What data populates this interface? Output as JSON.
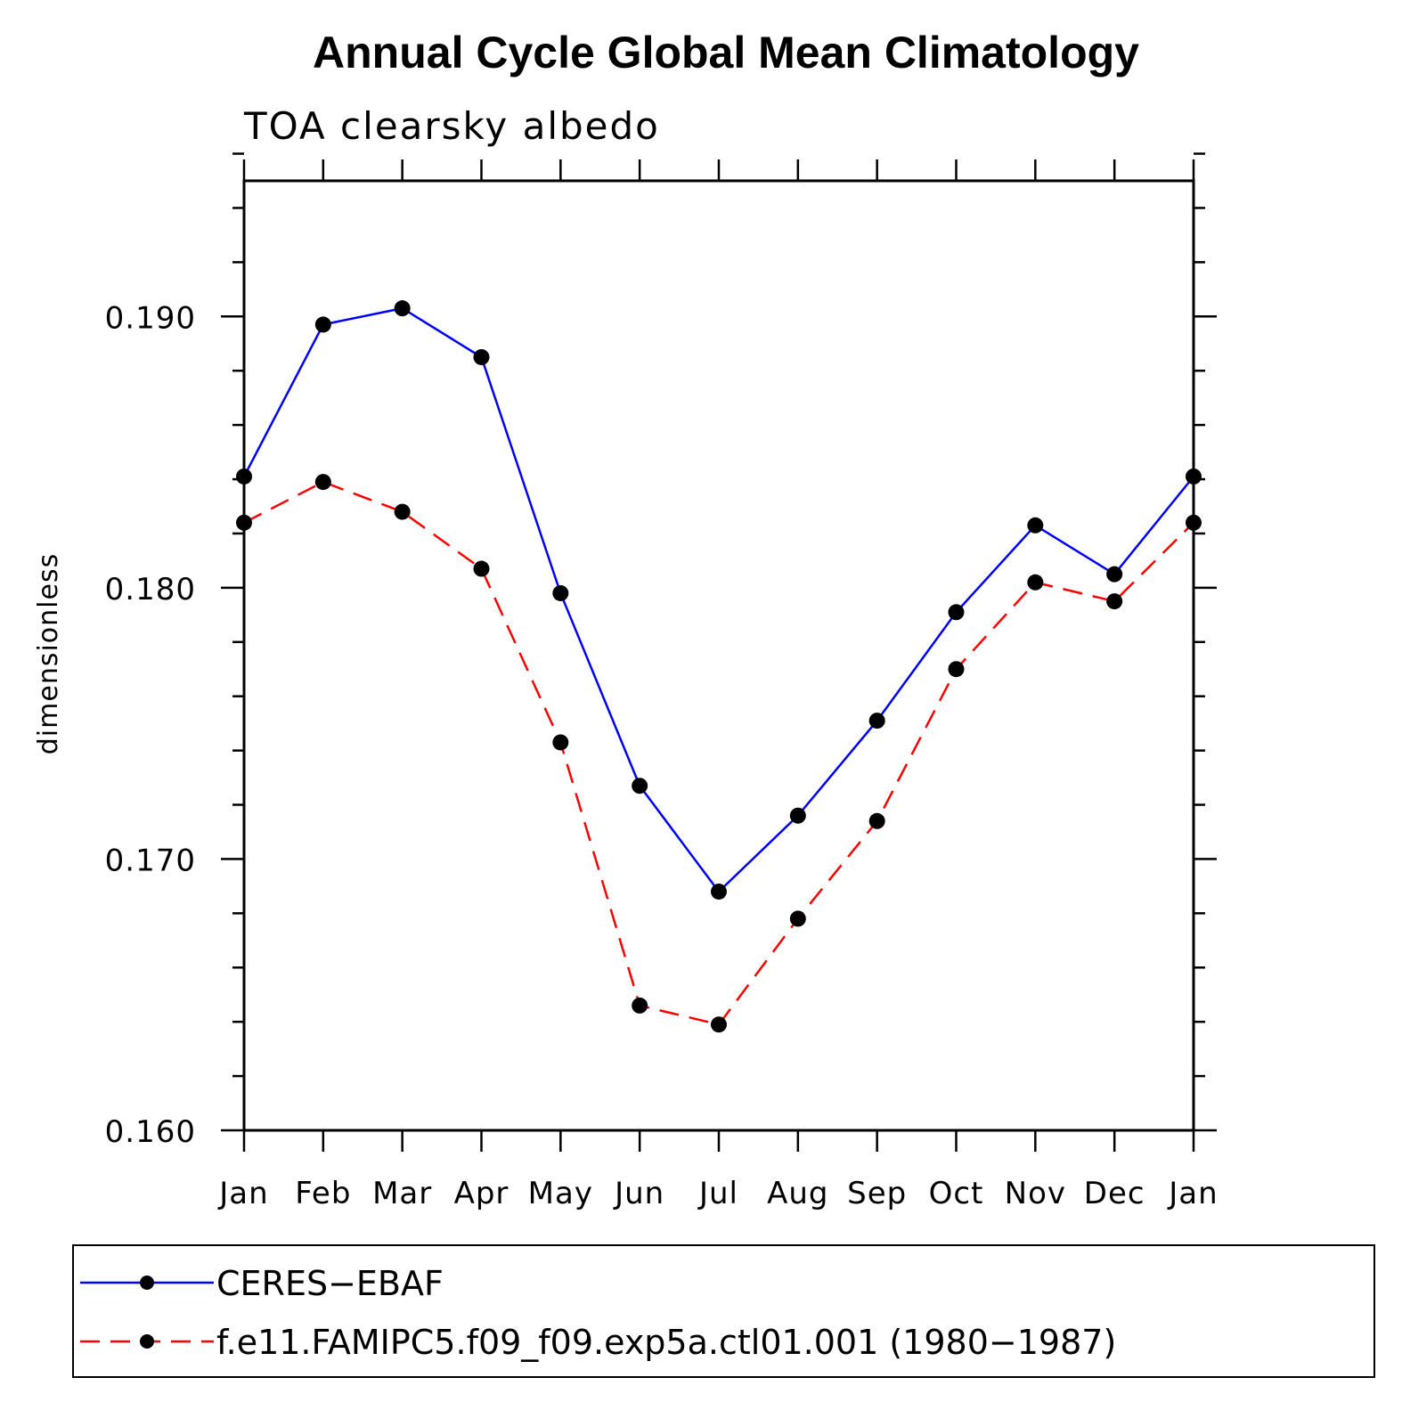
{
  "chart_data": {
    "type": "line",
    "title": "Annual Cycle Global Mean Climatology",
    "subtitle": "TOA clearsky albedo",
    "ylabel": "dimensionless",
    "xlabel": "",
    "categories": [
      "Jan",
      "Feb",
      "Mar",
      "Apr",
      "May",
      "Jun",
      "Jul",
      "Aug",
      "Sep",
      "Oct",
      "Nov",
      "Dec",
      "Jan"
    ],
    "ylim": [
      0.16,
      0.195
    ],
    "yticks": [
      0.16,
      0.17,
      0.18,
      0.19
    ],
    "ytick_labels": [
      "0.160",
      "0.170",
      "0.180",
      "0.190"
    ],
    "grid": false,
    "legend_position": "bottom",
    "series": [
      {
        "name": "CERES−EBAF",
        "color": "#0000ff",
        "line_style": "solid",
        "marker": "filled-circle",
        "values": [
          0.1841,
          0.1897,
          0.1903,
          0.1885,
          0.1798,
          0.1727,
          0.1688,
          0.1716,
          0.1751,
          0.1791,
          0.1823,
          0.1805,
          0.1841
        ]
      },
      {
        "name": "f.e11.FAMIPC5.f09_f09.exp5a.ctl01.001 (1980−1987)",
        "color": "#ff0000",
        "line_style": "dashed",
        "marker": "filled-circle",
        "values": [
          0.1824,
          0.1839,
          0.1828,
          0.1807,
          0.1743,
          0.1646,
          0.1639,
          0.1678,
          0.1714,
          0.177,
          0.1802,
          0.1795,
          0.1824
        ]
      }
    ]
  }
}
